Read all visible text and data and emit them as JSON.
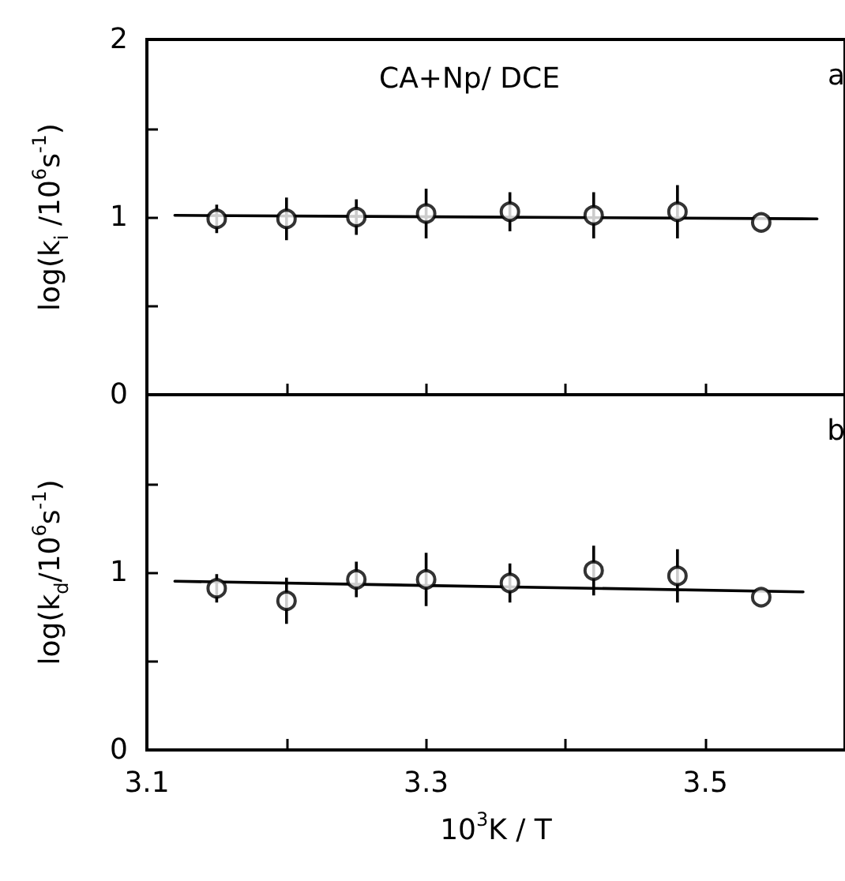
{
  "chart_data": [
    {
      "type": "scatter",
      "ylabel": "log(k$_{i}$ /10$^{6}$s$^{-1}$)",
      "annotations": [
        "CA+Np/ DCE",
        "a"
      ],
      "tick_labels": "y",
      "xlim": [
        3.1,
        3.6
      ],
      "xticks": [
        {
          "value": 3.1,
          "label": null
        },
        {
          "value": 3.2,
          "label": null
        },
        {
          "value": 3.3,
          "label": null
        },
        {
          "value": 3.4,
          "label": null
        },
        {
          "value": 3.5,
          "label": null
        }
      ],
      "ylim": [
        0,
        2
      ],
      "yticks": [
        0,
        {
          "value": 0.5,
          "label": null
        },
        1,
        {
          "value": 1.5,
          "label": null
        },
        2
      ],
      "series": [
        {
          "color": "#000000",
          "marker": "circle",
          "x": [
            3.15,
            3.2,
            3.25,
            3.3,
            3.36,
            3.42,
            3.48,
            3.54
          ],
          "values": [
            0.99,
            0.99,
            1.0,
            1.02,
            1.03,
            1.01,
            1.03,
            0.97
          ],
          "errors": [
            0.08,
            0.12,
            0.1,
            0.14,
            0.11,
            0.13,
            0.15,
            null
          ]
        },
        {
          "type": "line",
          "color": "#000000",
          "x": [
            3.12,
            3.58
          ],
          "values": [
            1.01,
            0.99
          ]
        }
      ]
    },
    {
      "type": "scatter",
      "xlabel": "10$^{3}$K / T",
      "ylabel": "log(k$_{d}$/10$^{6}$s$^{-1}$)",
      "annotations": [
        "b"
      ],
      "xlim": [
        3.1,
        3.6
      ],
      "xticks": [
        3.1,
        {
          "value": 3.2,
          "label": null
        },
        3.3,
        {
          "value": 3.4,
          "label": null
        },
        3.5
      ],
      "ylim": [
        0,
        2
      ],
      "yticks": [
        0,
        {
          "value": 0.5,
          "label": null
        },
        1,
        {
          "value": 1.5,
          "label": null
        },
        {
          "value": 2,
          "label": null
        }
      ],
      "series": [
        {
          "color": "#000000",
          "marker": "circle",
          "x": [
            3.15,
            3.2,
            3.25,
            3.3,
            3.36,
            3.42,
            3.48,
            3.54
          ],
          "values": [
            0.91,
            0.84,
            0.96,
            0.96,
            0.94,
            1.01,
            0.98,
            0.86
          ],
          "errors": [
            0.08,
            0.13,
            0.1,
            0.15,
            0.11,
            0.14,
            0.15,
            null
          ]
        },
        {
          "type": "line",
          "color": "#000000",
          "x": [
            3.12,
            3.57
          ],
          "values": [
            0.95,
            0.89
          ]
        }
      ]
    }
  ]
}
